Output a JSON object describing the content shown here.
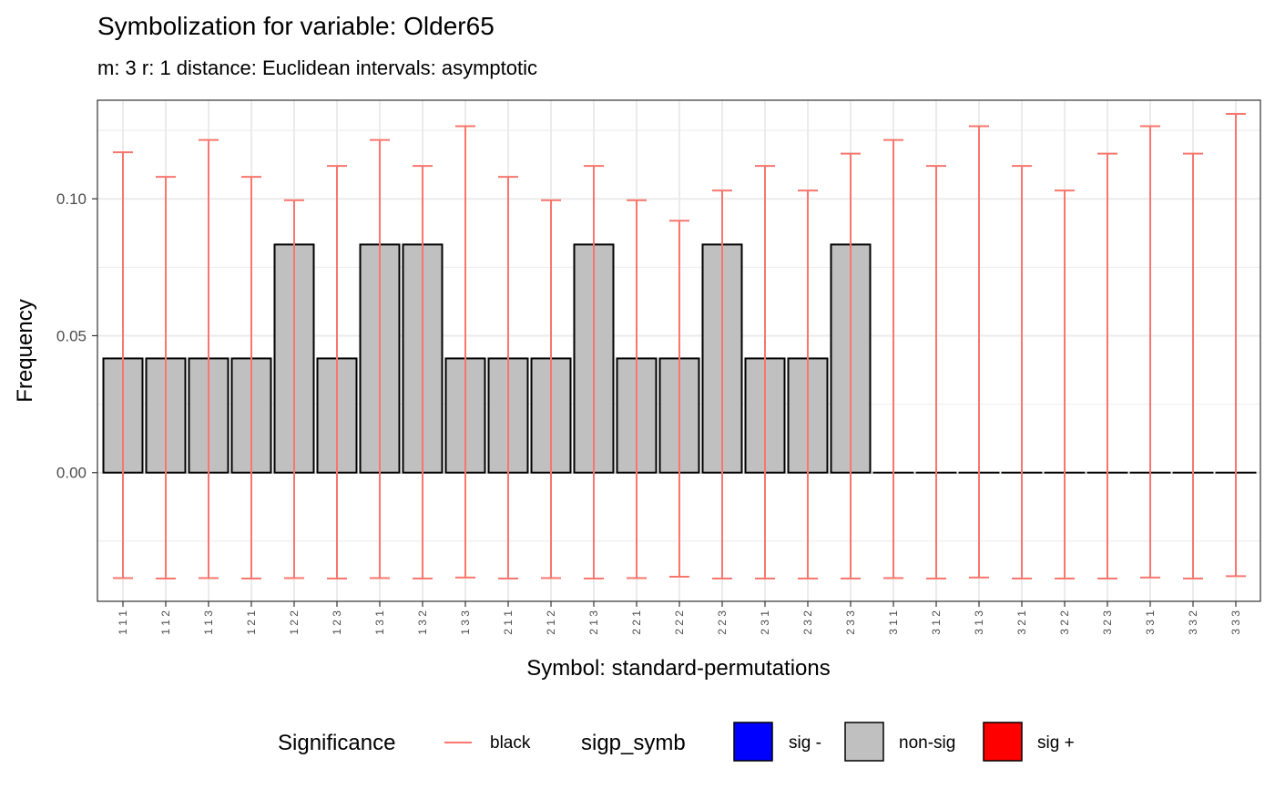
{
  "chart_data": {
    "type": "bar",
    "title": "Symbolization for variable: Older65",
    "subtitle": "m: 3  r:  1  distance:  Euclidean  intervals:  asymptotic",
    "xlabel": "Symbol: standard-permutations",
    "ylabel": "Frequency",
    "ylim": [
      -0.047,
      0.136
    ],
    "yticks": [
      0.0,
      0.05,
      0.1
    ],
    "ytick_labels": [
      "0.00",
      "0.05",
      "0.10"
    ],
    "grid": true,
    "legend_position": "bottom",
    "categories": [
      "1 1 1",
      "1 1 2",
      "1 1 3",
      "1 2 1",
      "1 2 2",
      "1 2 3",
      "1 3 1",
      "1 3 2",
      "1 3 3",
      "2 1 1",
      "2 1 2",
      "2 1 3",
      "2 2 1",
      "2 2 2",
      "2 2 3",
      "2 3 1",
      "2 3 2",
      "2 3 3",
      "3 1 1",
      "3 1 2",
      "3 1 3",
      "3 2 1",
      "3 2 2",
      "3 2 3",
      "3 3 1",
      "3 3 2",
      "3 3 3"
    ],
    "values": [
      0.0417,
      0.0417,
      0.0417,
      0.0417,
      0.0833,
      0.0417,
      0.0833,
      0.0833,
      0.0417,
      0.0417,
      0.0417,
      0.0833,
      0.0417,
      0.0417,
      0.0833,
      0.0417,
      0.0417,
      0.0833,
      0,
      0,
      0,
      0,
      0,
      0,
      0,
      0,
      0
    ],
    "upper": [
      0.117,
      0.108,
      0.1215,
      0.108,
      0.0995,
      0.112,
      0.1215,
      0.112,
      0.1265,
      0.108,
      0.0995,
      0.112,
      0.0995,
      0.092,
      0.103,
      0.112,
      0.103,
      0.1165,
      0.1215,
      0.112,
      0.1265,
      0.112,
      0.103,
      0.1165,
      0.1265,
      0.1165,
      0.131
    ],
    "lower": [
      -0.0385,
      -0.0387,
      -0.0385,
      -0.0387,
      -0.0385,
      -0.0387,
      -0.0385,
      -0.0387,
      -0.0383,
      -0.0387,
      -0.0385,
      -0.0387,
      -0.0385,
      -0.038,
      -0.0387,
      -0.0387,
      -0.0387,
      -0.0387,
      -0.0385,
      -0.0387,
      -0.0383,
      -0.0387,
      -0.0387,
      -0.0387,
      -0.0383,
      -0.0387,
      -0.0378
    ],
    "colors": {
      "bar_fill": "#c0c0c0",
      "bar_stroke": "#000000",
      "errorbar": "#f8766d",
      "grid": "#ebebeb",
      "panel_border": "#333333"
    }
  },
  "legend": {
    "significance_title": "Significance",
    "significance_label": "black",
    "sigp_title": "sigp_symb",
    "items": [
      {
        "label": "sig -",
        "color": "#0000ff"
      },
      {
        "label": "non-sig",
        "color": "#c0c0c0"
      },
      {
        "label": "sig +",
        "color": "#ff0000"
      }
    ]
  }
}
